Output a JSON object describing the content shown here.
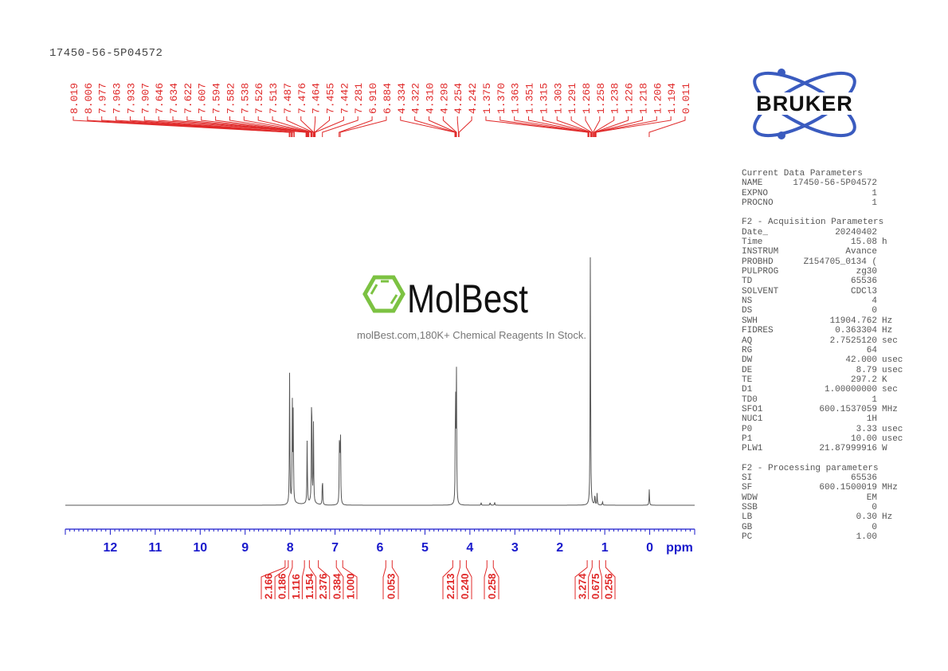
{
  "title": "17450-56-5P04572",
  "watermark": {
    "brand": "MolBest",
    "tagline": "molBest.com,180K+ Chemical Reagents In Stock."
  },
  "logo": {
    "text": "BRUKER",
    "color": "#3a5bbf"
  },
  "colors": {
    "peak_labels": "#e02a2a",
    "axis": "#1a1acc",
    "spectrum": "#555555",
    "integrals": "#e02a2a"
  },
  "parameters": {
    "current": {
      "header": "Current Data Parameters",
      "rows": [
        {
          "k": "NAME",
          "v": "17450-56-5P04572",
          "u": ""
        },
        {
          "k": "EXPNO",
          "v": "1",
          "u": ""
        },
        {
          "k": "PROCNO",
          "v": "1",
          "u": ""
        }
      ]
    },
    "acquisition": {
      "header": "F2 - Acquisition Parameters",
      "rows": [
        {
          "k": "Date_",
          "v": "20240402",
          "u": ""
        },
        {
          "k": "Time",
          "v": "15.08",
          "u": "h"
        },
        {
          "k": "INSTRUM",
          "v": "Avance",
          "u": ""
        },
        {
          "k": "PROBHD",
          "v": "Z154705_0134 (",
          "u": ""
        },
        {
          "k": "PULPROG",
          "v": "zg30",
          "u": ""
        },
        {
          "k": "TD",
          "v": "65536",
          "u": ""
        },
        {
          "k": "SOLVENT",
          "v": "CDCl3",
          "u": ""
        },
        {
          "k": "NS",
          "v": "4",
          "u": ""
        },
        {
          "k": "DS",
          "v": "0",
          "u": ""
        },
        {
          "k": "SWH",
          "v": "11904.762",
          "u": "Hz"
        },
        {
          "k": "FIDRES",
          "v": "0.363304",
          "u": "Hz"
        },
        {
          "k": "AQ",
          "v": "2.7525120",
          "u": "sec"
        },
        {
          "k": "RG",
          "v": "64",
          "u": ""
        },
        {
          "k": "DW",
          "v": "42.000",
          "u": "usec"
        },
        {
          "k": "DE",
          "v": "8.79",
          "u": "usec"
        },
        {
          "k": "TE",
          "v": "297.2",
          "u": "K"
        },
        {
          "k": "D1",
          "v": "1.00000000",
          "u": "sec"
        },
        {
          "k": "TD0",
          "v": "1",
          "u": ""
        },
        {
          "k": "SFO1",
          "v": "600.1537059",
          "u": "MHz"
        },
        {
          "k": "NUC1",
          "v": "1H",
          "u": ""
        },
        {
          "k": "P0",
          "v": "3.33",
          "u": "usec"
        },
        {
          "k": "P1",
          "v": "10.00",
          "u": "usec"
        },
        {
          "k": "PLW1",
          "v": "21.87999916",
          "u": "W"
        }
      ]
    },
    "processing": {
      "header": "F2 - Processing parameters",
      "rows": [
        {
          "k": "SI",
          "v": "65536",
          "u": ""
        },
        {
          "k": "SF",
          "v": "600.1500019",
          "u": "MHz"
        },
        {
          "k": "WDW",
          "v": "EM",
          "u": ""
        },
        {
          "k": "SSB",
          "v": "0",
          "u": ""
        },
        {
          "k": "LB",
          "v": "0.30",
          "u": "Hz"
        },
        {
          "k": "GB",
          "v": "0",
          "u": ""
        },
        {
          "k": "PC",
          "v": "1.00",
          "u": ""
        }
      ]
    }
  },
  "chart_data": {
    "type": "line",
    "title": "17450-56-5P04572",
    "xlabel": "ppm",
    "ylabel": "",
    "xlim": [
      13.0,
      -1.0
    ],
    "x_ticks": [
      12,
      11,
      10,
      9,
      8,
      7,
      6,
      5,
      4,
      3,
      2,
      1,
      0
    ],
    "x_tick_labels": [
      "12",
      "11",
      "10",
      "9",
      "8",
      "7",
      "6",
      "5",
      "4",
      "3",
      "2",
      "1",
      "0"
    ],
    "grid": false,
    "legend": null,
    "peak_labels": [
      "8.019",
      "8.006",
      "7.977",
      "7.963",
      "7.933",
      "7.907",
      "7.646",
      "7.634",
      "7.622",
      "7.607",
      "7.594",
      "7.582",
      "7.538",
      "7.526",
      "7.513",
      "7.487",
      "7.476",
      "7.464",
      "7.455",
      "7.442",
      "7.281",
      "6.910",
      "6.884",
      "4.334",
      "4.322",
      "4.310",
      "4.298",
      "4.254",
      "4.242",
      "1.375",
      "1.370",
      "1.363",
      "1.351",
      "1.315",
      "1.303",
      "1.291",
      "1.268",
      "1.258",
      "1.238",
      "1.226",
      "1.218",
      "1.206",
      "1.194",
      "0.011"
    ],
    "peaks": [
      {
        "ppm": 8.01,
        "rel_height": 0.52
      },
      {
        "ppm": 7.95,
        "rel_height": 0.37
      },
      {
        "ppm": 7.93,
        "rel_height": 0.35
      },
      {
        "ppm": 7.62,
        "rel_height": 0.25
      },
      {
        "ppm": 7.52,
        "rel_height": 0.52
      },
      {
        "ppm": 7.48,
        "rel_height": 0.3
      },
      {
        "ppm": 7.28,
        "rel_height": 0.12
      },
      {
        "ppm": 6.9,
        "rel_height": 0.32
      },
      {
        "ppm": 6.88,
        "rel_height": 0.3
      },
      {
        "ppm": 4.32,
        "rel_height": 0.5
      },
      {
        "ppm": 4.3,
        "rel_height": 0.51
      },
      {
        "ppm": 3.75,
        "rel_height": 0.01
      },
      {
        "ppm": 3.55,
        "rel_height": 0.012
      },
      {
        "ppm": 3.45,
        "rel_height": 0.012
      },
      {
        "ppm": 1.32,
        "rel_height": 1.0
      },
      {
        "ppm": 1.22,
        "rel_height": 0.045
      },
      {
        "ppm": 1.17,
        "rel_height": 0.045
      },
      {
        "ppm": 1.05,
        "rel_height": 0.015
      },
      {
        "ppm": 0.01,
        "rel_height": 0.06
      }
    ],
    "integrals": [
      {
        "label": "2.166",
        "ppm_center": 8.04
      },
      {
        "label": "0.186",
        "ppm_center": 7.97
      },
      {
        "label": "1.116",
        "ppm_center": 7.88
      },
      {
        "label": "1.154",
        "ppm_center": 7.61
      },
      {
        "label": "2.376",
        "ppm_center": 7.5
      },
      {
        "label": "0.384",
        "ppm_center": 7.3
      },
      {
        "label": "1.000",
        "ppm_center": 6.9
      },
      {
        "label": "0.053",
        "ppm_center": 5.8
      },
      {
        "label": "2.213",
        "ppm_center": 4.31
      },
      {
        "label": "0.240",
        "ppm_center": 4.15
      },
      {
        "label": "0.258",
        "ppm_center": 3.55
      },
      {
        "label": "3.274",
        "ppm_center": 1.32
      },
      {
        "label": "0.675",
        "ppm_center": 1.21
      },
      {
        "label": "0.256",
        "ppm_center": 1.05
      }
    ]
  }
}
